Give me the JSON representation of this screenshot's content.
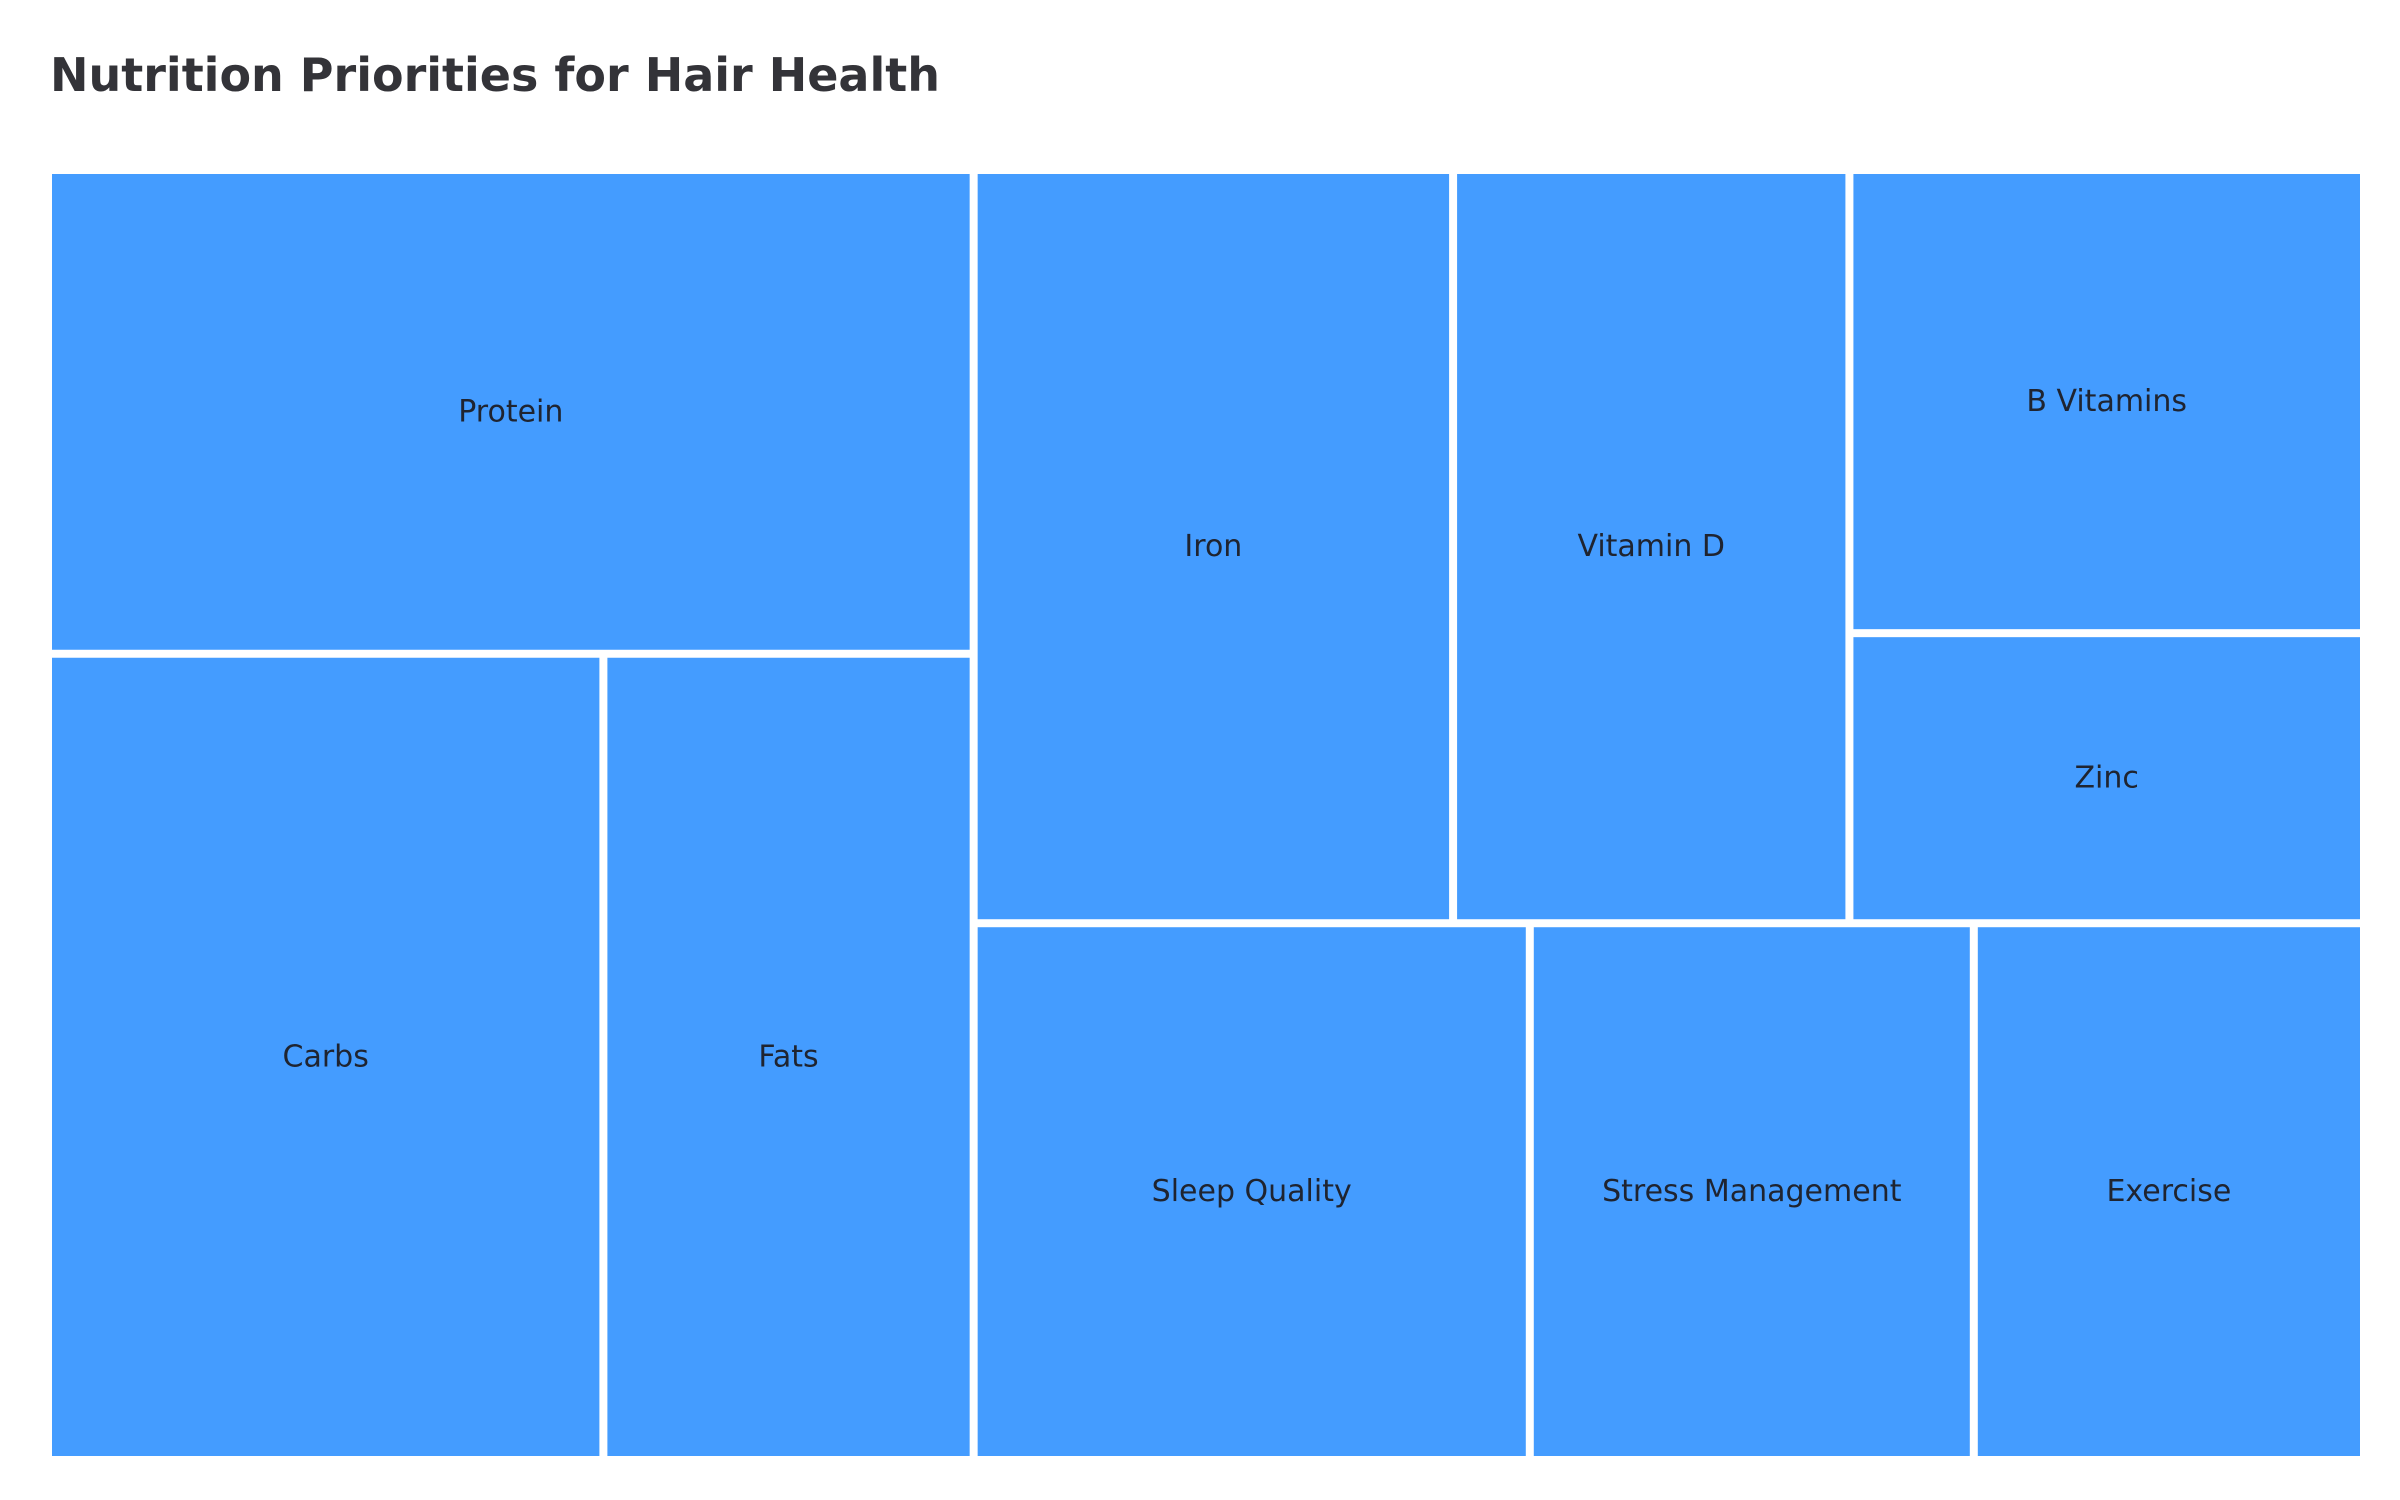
{
  "chart_data": {
    "type": "treemap",
    "title": "Nutrition Priorities for Hair Health",
    "tile_color": "#449cff",
    "border_color": "#ffffff",
    "items": [
      {
        "label": "Protein",
        "value": 186
      },
      {
        "label": "Carbs",
        "value": 186
      },
      {
        "label": "Fats",
        "value": 124
      },
      {
        "label": "Iron",
        "value": 150
      },
      {
        "label": "Vitamin D",
        "value": 124
      },
      {
        "label": "B Vitamins",
        "value": 99
      },
      {
        "label": "Zinc",
        "value": 62
      },
      {
        "label": "Sleep Quality",
        "value": 124
      },
      {
        "label": "Stress Management",
        "value": 99
      },
      {
        "label": "Exercise",
        "value": 87
      }
    ]
  }
}
